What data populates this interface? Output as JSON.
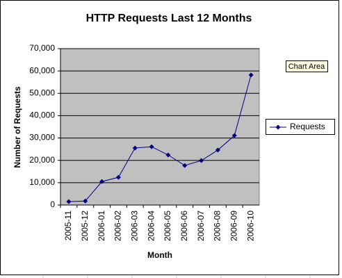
{
  "chart_data": {
    "type": "line",
    "title": "HTTP Requests Last 12 Months",
    "x_label": "Month",
    "y_label": "Number of Requests",
    "categories": [
      "2005-11",
      "2005-12",
      "2006-01",
      "2006-02",
      "2006-03",
      "2006-04",
      "2006-05",
      "2006-06",
      "2006-07",
      "2006-08",
      "2006-09",
      "2006-10"
    ],
    "series": [
      {
        "name": "Requests",
        "color": "#000080",
        "values": [
          1500,
          1800,
          10500,
          12400,
          25500,
          26100,
          22400,
          17700,
          19900,
          24600,
          31100,
          58200
        ]
      }
    ],
    "ylim": [
      0,
      70000
    ],
    "yticks": [
      0,
      {
        "value": 10000,
        "label": "10,000"
      },
      {
        "value": 20000,
        "label": "20,000"
      },
      {
        "value": 30000,
        "label": "30,000"
      },
      {
        "value": 40000,
        "label": "40,000"
      },
      {
        "value": 50000,
        "label": "50,000"
      },
      {
        "value": 60000,
        "label": "60,000"
      },
      {
        "value": 70000,
        "label": "70,000"
      }
    ],
    "grid": true,
    "legend": "right",
    "plot_background": "#c0c0c0"
  },
  "tooltip": "Chart Area"
}
